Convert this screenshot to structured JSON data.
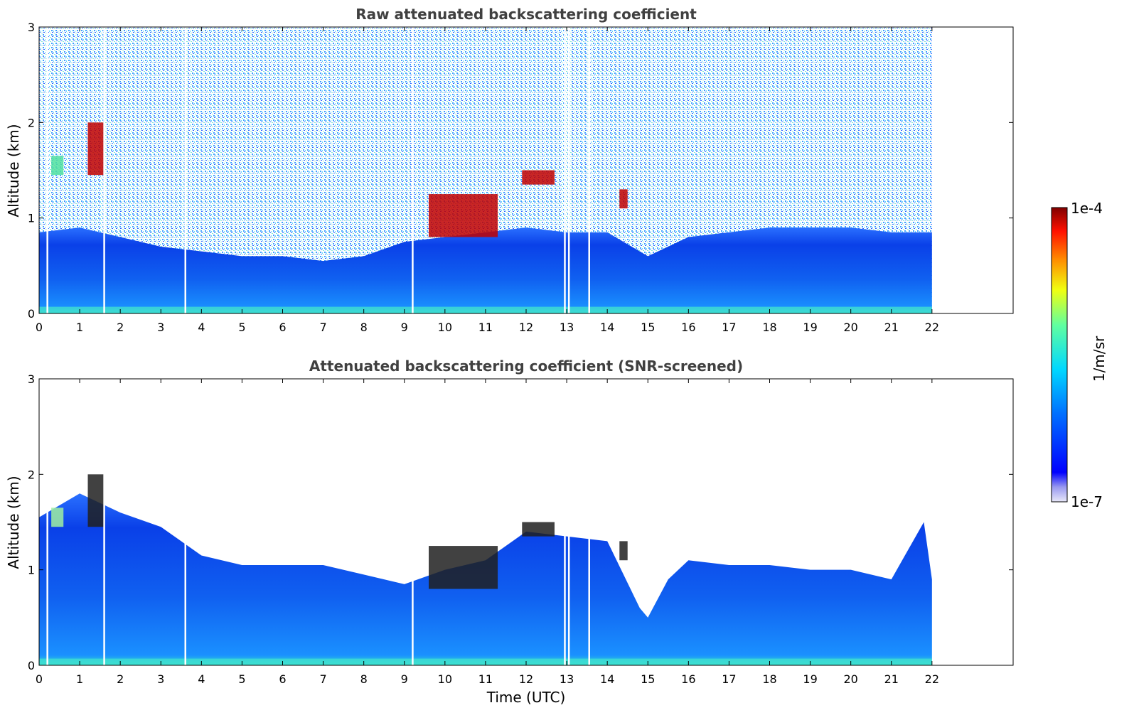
{
  "chart_data": [
    {
      "type": "heatmap",
      "title": "Raw attenuated backscattering coefficient",
      "xlabel": "",
      "ylabel": "Altitude (km)",
      "xlim": [
        0,
        24
      ],
      "ylim": [
        0,
        3
      ],
      "x_ticks": [
        "0",
        "1",
        "2",
        "3",
        "4",
        "5",
        "6",
        "7",
        "8",
        "9",
        "10",
        "11",
        "12",
        "13",
        "14",
        "15",
        "16",
        "17",
        "18",
        "19",
        "20",
        "21",
        "22"
      ],
      "y_ticks": [
        "0",
        "1",
        "2",
        "3"
      ],
      "data_extent_hours": [
        0,
        22
      ],
      "gaps_hours": [
        0.2,
        1.6,
        3.6,
        9.2,
        12.95,
        13.05,
        13.55
      ],
      "aerosol_top_km": [
        [
          0,
          0.85
        ],
        [
          1,
          0.9
        ],
        [
          2,
          0.8
        ],
        [
          3,
          0.7
        ],
        [
          4,
          0.65
        ],
        [
          5,
          0.6
        ],
        [
          6,
          0.6
        ],
        [
          7,
          0.55
        ],
        [
          8,
          0.6
        ],
        [
          9,
          0.75
        ],
        [
          10,
          0.8
        ],
        [
          11,
          0.85
        ],
        [
          12,
          0.9
        ],
        [
          13,
          0.85
        ],
        [
          14,
          0.85
        ],
        [
          15,
          0.6
        ],
        [
          16,
          0.8
        ],
        [
          17,
          0.85
        ],
        [
          18,
          0.9
        ],
        [
          19,
          0.9
        ],
        [
          20,
          0.9
        ],
        [
          21,
          0.85
        ],
        [
          22,
          0.85
        ]
      ],
      "cloud_features": [
        {
          "time_hours": [
            0.3,
            0.6
          ],
          "alt_km": [
            1.45,
            1.65
          ],
          "level": "high"
        },
        {
          "time_hours": [
            1.2,
            1.6
          ],
          "alt_km": [
            1.45,
            2.0
          ],
          "level": "very high"
        },
        {
          "time_hours": [
            9.6,
            11.3
          ],
          "alt_km": [
            0.8,
            1.25
          ],
          "level": "very high"
        },
        {
          "time_hours": [
            11.9,
            12.7
          ],
          "alt_km": [
            1.35,
            1.5
          ],
          "level": "very high"
        },
        {
          "time_hours": [
            14.3,
            14.5
          ],
          "alt_km": [
            1.1,
            1.3
          ],
          "level": "very high"
        }
      ]
    },
    {
      "type": "heatmap",
      "title": "Attenuated backscattering coefficient (SNR-screened)",
      "xlabel": "Time (UTC)",
      "ylabel": "Altitude (km)",
      "xlim": [
        0,
        24
      ],
      "ylim": [
        0,
        3
      ],
      "x_ticks": [
        "0",
        "1",
        "2",
        "3",
        "4",
        "5",
        "6",
        "7",
        "8",
        "9",
        "10",
        "11",
        "12",
        "13",
        "14",
        "15",
        "16",
        "17",
        "18",
        "19",
        "20",
        "21",
        "22"
      ],
      "y_ticks": [
        "0",
        "1",
        "2",
        "3"
      ],
      "data_extent_hours": [
        0,
        22
      ],
      "screened_top_km": [
        [
          0,
          1.55
        ],
        [
          1,
          1.8
        ],
        [
          2,
          1.6
        ],
        [
          3,
          1.45
        ],
        [
          4,
          1.15
        ],
        [
          5,
          1.05
        ],
        [
          6,
          1.05
        ],
        [
          7,
          1.05
        ],
        [
          8,
          0.95
        ],
        [
          9,
          0.85
        ],
        [
          10,
          1.0
        ],
        [
          11,
          1.1
        ],
        [
          12,
          1.4
        ],
        [
          13,
          1.35
        ],
        [
          14,
          1.3
        ],
        [
          14.8,
          0.6
        ],
        [
          15,
          0.5
        ],
        [
          15.5,
          0.9
        ],
        [
          16,
          1.1
        ],
        [
          17,
          1.05
        ],
        [
          18,
          1.05
        ],
        [
          19,
          1.0
        ],
        [
          20,
          1.0
        ],
        [
          21,
          0.9
        ],
        [
          21.8,
          1.5
        ],
        [
          22,
          0.9
        ]
      ]
    }
  ],
  "colorbar": {
    "label": "1/m/sr",
    "max_label": "1e-4",
    "min_label": "1e-7",
    "scale": "log",
    "colormap": "jet"
  }
}
